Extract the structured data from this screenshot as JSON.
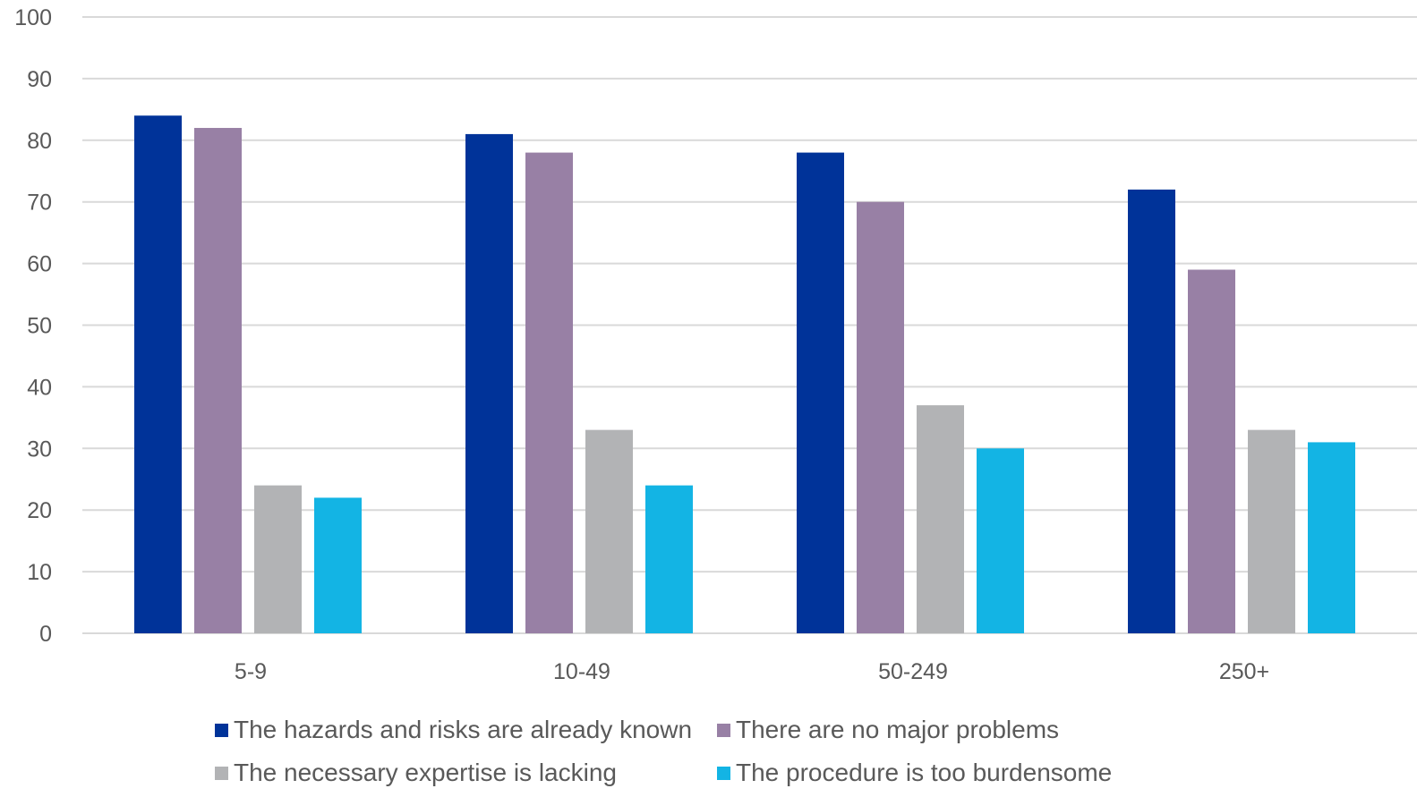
{
  "chart_data": {
    "type": "bar",
    "categories": [
      "5-9",
      "10-49",
      "50-249",
      "250+"
    ],
    "series": [
      {
        "name": "The hazards and risks are already known",
        "color": "#003399",
        "values": [
          84,
          81,
          78,
          72
        ]
      },
      {
        "name": "There are no major problems",
        "color": "#9880A5",
        "values": [
          82,
          78,
          70,
          59
        ]
      },
      {
        "name": "The necessary expertise is lacking",
        "color": "#B2B3B5",
        "values": [
          24,
          33,
          37,
          33
        ]
      },
      {
        "name": "The procedure is too burdensome",
        "color": "#13B4E4",
        "values": [
          22,
          24,
          30,
          31
        ]
      }
    ],
    "y_ticks": [
      "0",
      "10",
      "20",
      "30",
      "40",
      "50",
      "60",
      "70",
      "80",
      "90",
      "100"
    ],
    "ylim": [
      0,
      100
    ],
    "grid": true,
    "legend_position": "bottom",
    "title": "",
    "xlabel": "",
    "ylabel": ""
  }
}
